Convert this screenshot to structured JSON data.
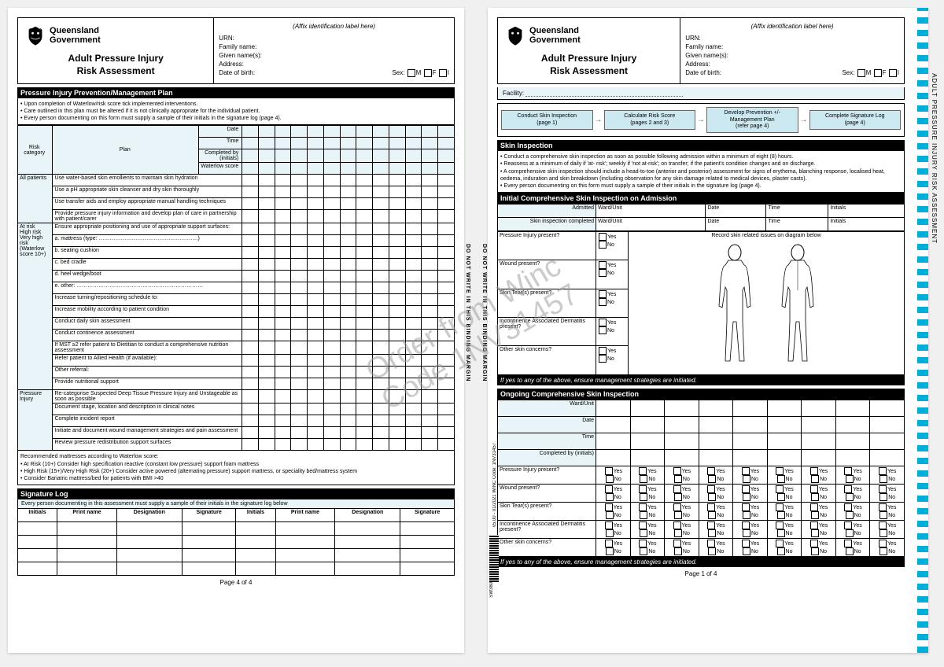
{
  "org": {
    "line1": "Queensland",
    "line2": "Government"
  },
  "formTitle": {
    "line1": "Adult Pressure Injury",
    "line2": "Risk Assessment"
  },
  "affix": "(Affix identification label here)",
  "idFields": {
    "urn": "URN:",
    "family": "Family name:",
    "given": "Given name(s):",
    "address": "Address:",
    "dob": "Date of birth:",
    "sex": "Sex:",
    "m": "M",
    "f": "F",
    "i": "I",
    "facility": "Facility:"
  },
  "page4": {
    "sectionTitle": "Pressure Injury Prevention/Management Plan",
    "notes": [
      "• Upon completion of Waterlow/risk score tick implemented interventions.",
      "• Care outlined in this plan must be altered if it is not clinically appropriate for the individual patient.",
      "• Every person documenting on this form must supply a sample of their initials in the signature log (page 4)."
    ],
    "planHeaders": {
      "risk": "Risk category",
      "plan": "Plan",
      "date": "Date",
      "time": "Time",
      "completed": "Completed by (initials)",
      "waterlow": "Waterlow score"
    },
    "rows": [
      {
        "cat": "All patients",
        "items": [
          "Use water-based skin emollients to maintain skin hydration",
          "Use a pH appropriate skin cleanser and dry skin thoroughly",
          "Use transfer aids and employ appropriate manual handling techniques",
          "Provide pressure injury information and develop plan of care in partnership with patient/carer"
        ]
      },
      {
        "cat": "At risk\nHigh risk\nVery high risk\n(Waterlow score 10+)",
        "items": [
          "Ensure appropriate positioning and use of appropriate support surfaces:",
          "   a. mattress (type: ………………………………………………)",
          "   b. seating cushion",
          "   c. bed cradle",
          "   d. heel wedge/boot",
          "   e. other: ……………………………………………………………",
          "Increase turning/repositioning schedule to:",
          "Increase mobility according to patient condition",
          "Conduct daily skin assessment",
          "Conduct continence assessment",
          "If MST ≥2 refer patient to Dietitian to conduct a comprehensive nutrition assessment",
          "Refer patient to Allied Health (if available):",
          "Other referral:",
          "Provide nutritional support"
        ]
      },
      {
        "cat": "Pressure Injury",
        "items": [
          "Re-categorise Suspected Deep Tissue Pressure Injury and Unstageable as soon as possible",
          "Document stage, location and description in clinical notes",
          "Complete incident report",
          "Initiate and document wound management strategies and pain assessment",
          "Review pressure redistribution support surfaces"
        ]
      }
    ],
    "mattressNote": {
      "title": "Recommended mattresses according to Waterlow score:",
      "lines": [
        "• At Risk (10+) Consider high specification reactive (constant low pressure) support foam mattress",
        "• High Risk (15+)/Very High Risk (20+) Consider active powered (alternating pressure) support mattress, or speciality bed/mattress system",
        "• Consider Bariatric mattress/bed for patients with BMI >40"
      ]
    },
    "sigLog": {
      "title": "Signature Log",
      "note": "Every person documenting in this assessment must supply a sample of their initials in the signature log below",
      "cols": [
        "Initials",
        "Print name",
        "Designation",
        "Signature",
        "Initials",
        "Print name",
        "Designation",
        "Signature"
      ]
    },
    "footer": "Page 4 of 4"
  },
  "page1": {
    "flow": [
      {
        "t": "Conduct Skin Inspection",
        "s": "(page 1)"
      },
      {
        "t": "Calculate Risk Score",
        "s": "(pages 2 and 3)"
      },
      {
        "t": "Develop Prevention +/- Management Plan",
        "s": "(refer page 4)"
      },
      {
        "t": "Complete Signature Log",
        "s": "(page 4)"
      }
    ],
    "skinTitle": "Skin Inspection",
    "skinNotes": [
      "• Conduct a comprehensive skin inspection as soon as possible following admission within a minimum of eight (8) hours.",
      "• Reassess at a minimum of daily if 'at- risk'; weekly if 'not at-risk'; on transfer; if the patient's condition changes and on discharge.",
      "• A comprehensive skin inspection should include a head-to-toe (anterior and posterior) assessment for signs of erythema, blanching response, localised heat, oedema, induration and skin breakdown (including observation for any skin damage related to medical devices, plaster casts).",
      "• Every person documenting on this form must supply a sample of their initials in the signature log (page 4)."
    ],
    "initialTitle": "Initial Comprehensive Skin Inspection on Admission",
    "admRows": {
      "admitted": "Admitted",
      "completed": "Skin inspection completed"
    },
    "admCols": [
      "Ward/Unit",
      "Date",
      "Time",
      "Initials"
    ],
    "questions": [
      "Pressure Injury present?",
      "Wound present?",
      "Skin Tear(s) present?",
      "Incontinence Associated Dermatitis present?",
      "Other skin concerns?"
    ],
    "yes": "Yes",
    "no": "No",
    "diagramNote": "Record skin related issues on diagram below",
    "ifYes": "If yes to any of the above, ensure management strategies are initiated.",
    "ongoingTitle": "Ongoing Comprehensive Skin Inspection",
    "ongoingHeaders": [
      "Ward/Unit",
      "Date",
      "Time",
      "Completed by (initials)"
    ],
    "footer": "Page 1 of 4",
    "sideTitle": "ADULT PRESSURE INJURY RISK ASSESSMENT"
  },
  "watermark": {
    "line1": "Order from Winc",
    "line2": "Code 1NV31457"
  },
  "bindingMargin": "DO NOT WRITE IN THIS BINDING MARGIN",
  "meta": {
    "version": "v5.00 - 01/2021",
    "code": "WINC Code: 1NV31457",
    "sw": "SW380"
  }
}
